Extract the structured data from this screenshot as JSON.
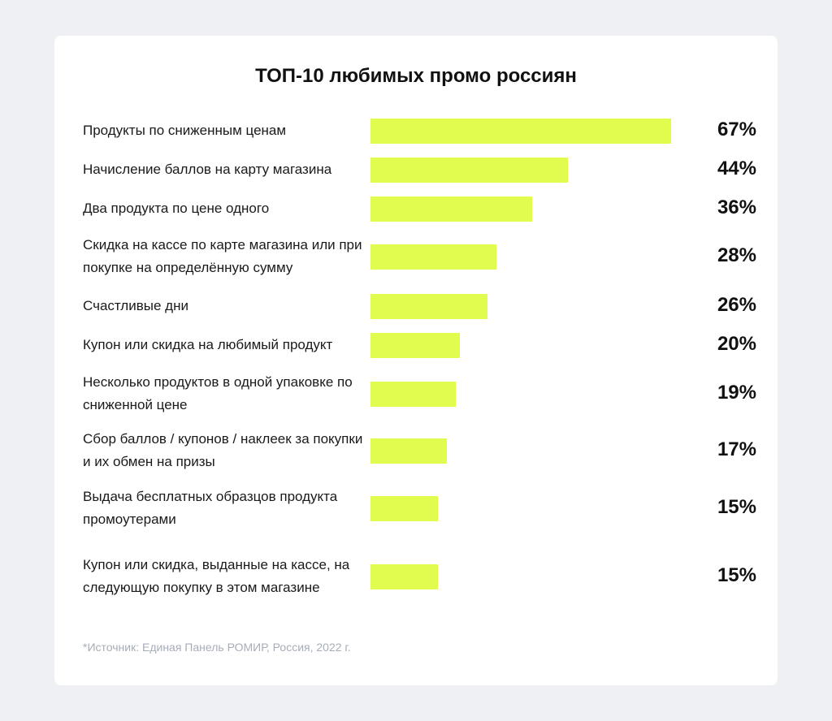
{
  "chart_data": {
    "type": "bar",
    "orientation": "horizontal",
    "title": "ТОП-10 любимых промо россиян",
    "categories": [
      "Продукты по сниженным ценам",
      "Начисление баллов на карту магазина",
      "Два продукта по цене одного",
      "Скидка на кассе по карте магазина или при покупке на определённую сумму",
      "Счастливые дни",
      "Купон или скидка на любимый продукт",
      "Несколько продуктов в одной упаковке по сниженной цене",
      "Сбор баллов / купонов / наклеек за покупки и их обмен на призы",
      "Выдача бесплатных образцов продукта промоутерами",
      "Купон или скидка, выданные на кассе, на следующую покупку в этом магазине"
    ],
    "values": [
      67,
      44,
      36,
      28,
      26,
      20,
      19,
      17,
      15,
      15
    ],
    "value_labels": [
      "67%",
      "44%",
      "36%",
      "28%",
      "26%",
      "20%",
      "19%",
      "17%",
      "15%",
      "15%"
    ],
    "unit": "%",
    "bar_color": "#e1fb4f",
    "xlim": [
      0,
      67
    ],
    "grid": false,
    "legend": "none"
  },
  "footnote": "*Источник: Единая Панель РОМИР, Россия, 2022 г.",
  "colors": {
    "background": "#eef0f4",
    "card": "#ffffff",
    "bar": "#e1fb4f",
    "text": "#111111",
    "footnote": "#a7adb8"
  }
}
